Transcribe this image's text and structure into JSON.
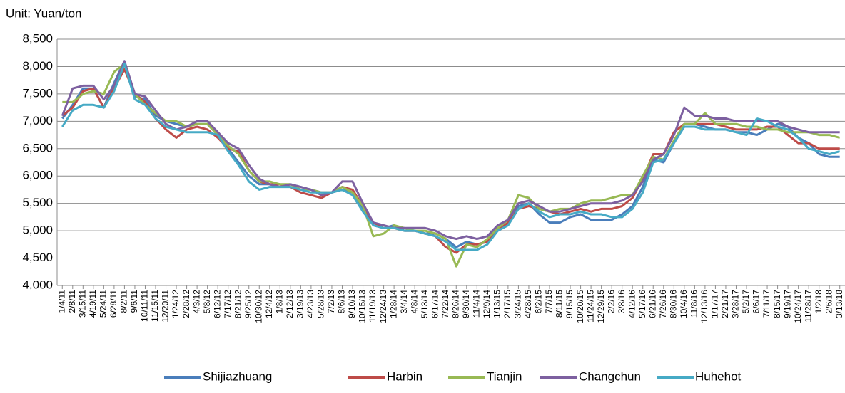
{
  "chart_data": {
    "type": "line",
    "unit_label": "Unit: Yuan/ton",
    "categories": [
      "1/4/11",
      "2/8/11",
      "3/15/11",
      "4/19/11",
      "5/24/11",
      "6/28/11",
      "8/2/11",
      "9/6/11",
      "10/11/11",
      "11/15/11",
      "12/20/11",
      "1/24/12",
      "2/28/12",
      "4/3/12",
      "5/8/12",
      "6/12/12",
      "7/17/12",
      "8/21/12",
      "9/25/12",
      "10/30/12",
      "12/4/12",
      "1/8/13",
      "2/12/13",
      "3/19/13",
      "4/23/13",
      "5/28/13",
      "7/2/13",
      "8/6/13",
      "9/10/13",
      "10/15/13",
      "11/19/13",
      "12/24/13",
      "1/28/14",
      "3/4/14",
      "4/8/14",
      "5/13/14",
      "6/17/14",
      "7/22/14",
      "8/26/14",
      "9/30/14",
      "11/4/14",
      "12/9/14",
      "1/13/15",
      "2/17/15",
      "3/24/15",
      "4/28/15",
      "6/2/15",
      "7/7/15",
      "8/11/15",
      "9/15/15",
      "10/20/15",
      "11/24/15",
      "12/29/15",
      "2/2/16",
      "3/8/16",
      "4/12/16",
      "5/17/16",
      "6/21/16",
      "7/26/16",
      "8/30/16",
      "10/4/16",
      "11/8/16",
      "12/13/16",
      "1/17/17",
      "2/21/17",
      "3/28/17",
      "5/2/17",
      "6/6/17",
      "7/11/17",
      "8/15/17",
      "9/19/17",
      "10/24/17",
      "11/28/17",
      "1/2/18",
      "2/6/18",
      "3/13/18"
    ],
    "series": [
      {
        "name": "Shijiazhuang",
        "color": "#4a7ebb",
        "values": [
          7050,
          7300,
          7600,
          7600,
          7250,
          7700,
          8100,
          7450,
          7400,
          7100,
          7000,
          6950,
          6900,
          6950,
          6950,
          6750,
          6500,
          6250,
          6000,
          5850,
          5850,
          5800,
          5850,
          5800,
          5750,
          5700,
          5700,
          5750,
          5700,
          5400,
          5100,
          5050,
          5100,
          5000,
          5000,
          4950,
          4950,
          4850,
          4700,
          4800,
          4750,
          4800,
          5000,
          5100,
          5450,
          5500,
          5300,
          5150,
          5150,
          5250,
          5300,
          5200,
          5200,
          5200,
          5300,
          5450,
          5800,
          6300,
          6250,
          6600,
          6950,
          6950,
          6900,
          6850,
          6850,
          6800,
          6800,
          6750,
          6850,
          6950,
          6900,
          6700,
          6600,
          6400,
          6350,
          6350
        ]
      },
      {
        "name": "Harbin",
        "color": "#be4b48",
        "values": [
          7100,
          7250,
          7550,
          7600,
          7250,
          7600,
          7950,
          7500,
          7350,
          7050,
          6850,
          6700,
          6850,
          6900,
          6850,
          6700,
          6500,
          6450,
          6100,
          5900,
          5850,
          5850,
          5800,
          5700,
          5650,
          5600,
          5700,
          5800,
          5750,
          5450,
          5150,
          5050,
          5050,
          5000,
          5000,
          4950,
          4900,
          4700,
          4600,
          4750,
          4750,
          4800,
          5000,
          5150,
          5400,
          5450,
          5400,
          5350,
          5300,
          5350,
          5400,
          5350,
          5400,
          5400,
          5450,
          5600,
          5950,
          6400,
          6400,
          6800,
          6950,
          6950,
          6950,
          6950,
          6900,
          6850,
          6850,
          6850,
          6900,
          6900,
          6750,
          6600,
          6600,
          6500,
          6500,
          6500
        ]
      },
      {
        "name": "Tianjin",
        "color": "#98b954",
        "values": [
          7350,
          7350,
          7500,
          7550,
          7500,
          7900,
          8050,
          7500,
          7300,
          7150,
          7000,
          7000,
          6900,
          6950,
          6950,
          6750,
          6550,
          6400,
          6100,
          5900,
          5900,
          5850,
          5850,
          5750,
          5750,
          5700,
          5700,
          5800,
          5700,
          5450,
          4900,
          4950,
          5100,
          5050,
          5000,
          5000,
          4950,
          4850,
          4350,
          4750,
          4700,
          4850,
          5050,
          5200,
          5650,
          5600,
          5400,
          5350,
          5400,
          5400,
          5500,
          5550,
          5550,
          5600,
          5650,
          5650,
          6000,
          6350,
          6300,
          6650,
          6950,
          6950,
          7150,
          6950,
          6950,
          6950,
          6900,
          6900,
          6850,
          6850,
          6800,
          6800,
          6800,
          6750,
          6750,
          6700
        ]
      },
      {
        "name": "Changchun",
        "color": "#7d60a0",
        "values": [
          7100,
          7600,
          7650,
          7650,
          7400,
          7650,
          8100,
          7500,
          7450,
          7200,
          6950,
          6850,
          6900,
          7000,
          7000,
          6800,
          6600,
          6500,
          6200,
          5950,
          5850,
          5800,
          5850,
          5800,
          5750,
          5650,
          5700,
          5900,
          5900,
          5500,
          5150,
          5100,
          5050,
          5050,
          5050,
          5050,
          5000,
          4900,
          4850,
          4900,
          4850,
          4900,
          5100,
          5200,
          5500,
          5550,
          5450,
          5350,
          5350,
          5400,
          5450,
          5500,
          5500,
          5500,
          5550,
          5650,
          5900,
          6300,
          6400,
          6750,
          7250,
          7100,
          7100,
          7050,
          7050,
          7000,
          7000,
          7000,
          7000,
          7000,
          6900,
          6850,
          6800,
          6800,
          6800,
          6800
        ]
      },
      {
        "name": "Huhehot",
        "color": "#46aac5",
        "values": [
          6900,
          7200,
          7300,
          7300,
          7250,
          7550,
          8050,
          7400,
          7300,
          7050,
          6900,
          6850,
          6800,
          6800,
          6800,
          6750,
          6450,
          6200,
          5900,
          5750,
          5800,
          5800,
          5800,
          5750,
          5700,
          5700,
          5700,
          5750,
          5650,
          5350,
          5100,
          5050,
          5050,
          5000,
          5000,
          4950,
          4900,
          4800,
          4650,
          4650,
          4650,
          4750,
          5000,
          5100,
          5400,
          5500,
          5350,
          5250,
          5300,
          5300,
          5350,
          5300,
          5300,
          5250,
          5250,
          5400,
          5700,
          6250,
          6300,
          6600,
          6900,
          6900,
          6850,
          6850,
          6850,
          6800,
          6750,
          7050,
          7000,
          6900,
          6850,
          6700,
          6500,
          6450,
          6400,
          6450
        ]
      }
    ],
    "ylim": [
      4000,
      8500
    ],
    "yticks": [
      {
        "value": 4000,
        "label": "4,000"
      },
      {
        "value": 4500,
        "label": "4,500"
      },
      {
        "value": 5000,
        "label": "5,000"
      },
      {
        "value": 5500,
        "label": "5,500"
      },
      {
        "value": 6000,
        "label": "6,000"
      },
      {
        "value": 6500,
        "label": "6,500"
      },
      {
        "value": 7000,
        "label": "7,000"
      },
      {
        "value": 7500,
        "label": "7,500"
      },
      {
        "value": 8000,
        "label": "8,000"
      },
      {
        "value": 8500,
        "label": "8,500"
      }
    ],
    "grid": true,
    "legend": "bottom"
  }
}
